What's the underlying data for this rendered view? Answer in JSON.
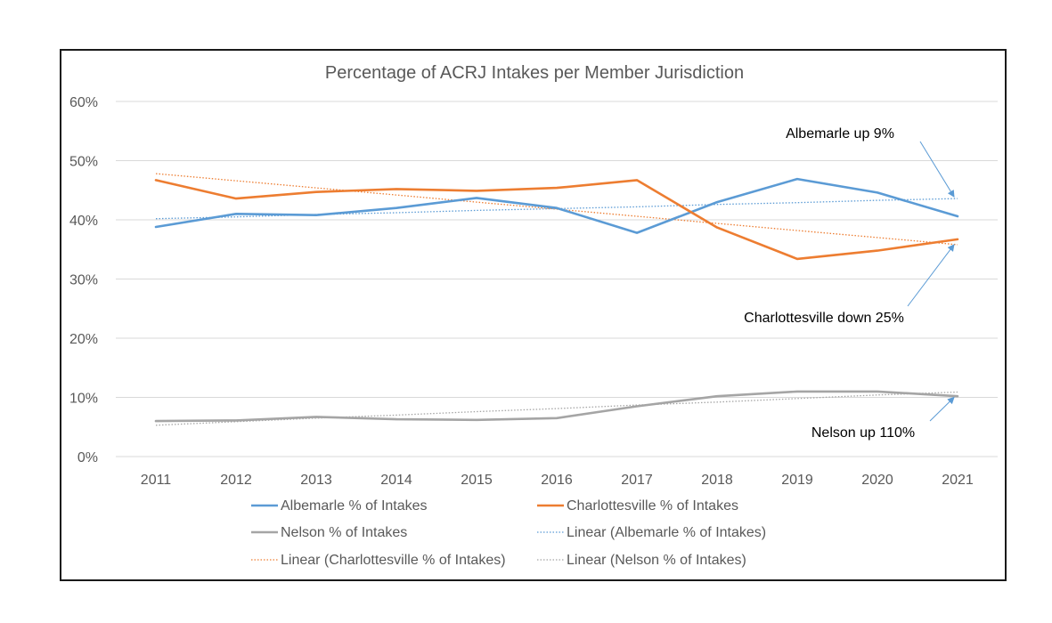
{
  "chart_data": {
    "type": "line",
    "title": "Percentage of ACRJ Intakes per Member Jurisdiction",
    "xlabel": "",
    "ylabel": "",
    "categories": [
      "2011",
      "2012",
      "2013",
      "2014",
      "2015",
      "2016",
      "2017",
      "2018",
      "2019",
      "2020",
      "2021"
    ],
    "yticks": [
      "0%",
      "10%",
      "20%",
      "30%",
      "40%",
      "50%",
      "60%"
    ],
    "ylim": [
      0,
      60
    ],
    "grid": true,
    "legend_position": "bottom",
    "series": [
      {
        "name": "Albemarle % of Intakes",
        "color": "#5b9bd5",
        "style": "solid",
        "values": [
          38.8,
          41.0,
          40.8,
          42.0,
          43.7,
          42.0,
          37.8,
          43.0,
          46.9,
          44.6,
          40.6
        ]
      },
      {
        "name": "Charlottesville % of Intakes",
        "color": "#ed7d31",
        "style": "solid",
        "values": [
          46.7,
          43.6,
          44.7,
          45.2,
          44.9,
          45.4,
          46.7,
          38.7,
          33.4,
          34.8,
          36.7
        ]
      },
      {
        "name": "Nelson % of Intakes",
        "color": "#a5a5a5",
        "style": "solid",
        "values": [
          6.0,
          6.1,
          6.7,
          6.3,
          6.2,
          6.5,
          8.5,
          10.2,
          11.0,
          11.0,
          10.2
        ]
      },
      {
        "name": "Linear (Albemarle % of Intakes)",
        "color": "#5b9bd5",
        "style": "dotted",
        "values": [
          40.2,
          40.5,
          40.9,
          41.2,
          41.6,
          41.9,
          42.2,
          42.6,
          42.9,
          43.3,
          43.6
        ]
      },
      {
        "name": "Linear (Charlottesville % of Intakes)",
        "color": "#ed7d31",
        "style": "dotted",
        "values": [
          47.8,
          46.6,
          45.4,
          44.2,
          43.0,
          41.8,
          40.6,
          39.4,
          38.2,
          37.0,
          35.8
        ]
      },
      {
        "name": "Linear (Nelson % of Intakes)",
        "color": "#a5a5a5",
        "style": "dotted",
        "values": [
          5.3,
          5.9,
          6.5,
          7.0,
          7.6,
          8.1,
          8.7,
          9.2,
          9.8,
          10.4,
          10.9
        ]
      }
    ],
    "annotations": [
      {
        "text": "Albemarle up 9%",
        "target_category": "2021",
        "target_value": 43.6
      },
      {
        "text": "Charlottesville down 25%",
        "target_category": "2021",
        "target_value": 35.8
      },
      {
        "text": "Nelson up 110%",
        "target_category": "2021",
        "target_value": 10.0
      }
    ]
  }
}
